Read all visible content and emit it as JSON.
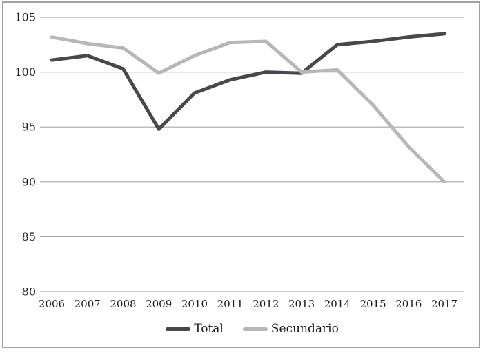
{
  "page": {
    "background_color": "#ffffff",
    "frame_border_color": "#a2a2a2",
    "text_color": "#1b1b1b"
  },
  "chart_data": {
    "type": "line",
    "title": "",
    "xlabel": "",
    "ylabel": "",
    "categories": [
      "2006",
      "2007",
      "2008",
      "2009",
      "2010",
      "2011",
      "2012",
      "2013",
      "2014",
      "2015",
      "2016",
      "2017"
    ],
    "series": [
      {
        "name": "Total",
        "color": "#47474e",
        "values": [
          101.1,
          101.5,
          100.3,
          94.8,
          98.1,
          99.3,
          100.0,
          99.9,
          102.5,
          102.8,
          103.2,
          103.5
        ]
      },
      {
        "name": "Secundario",
        "color": "#b7b7b7",
        "values": [
          103.2,
          102.6,
          102.2,
          99.9,
          101.5,
          102.7,
          102.8,
          100.0,
          100.2,
          97.0,
          93.2,
          90.0
        ]
      }
    ],
    "ylim": [
      80,
      105
    ],
    "yticks": [
      105,
      100,
      95,
      90,
      85,
      80
    ],
    "grid": true,
    "grid_color": "#a6a6a6",
    "line_width": 5,
    "legend_position": "bottom"
  }
}
